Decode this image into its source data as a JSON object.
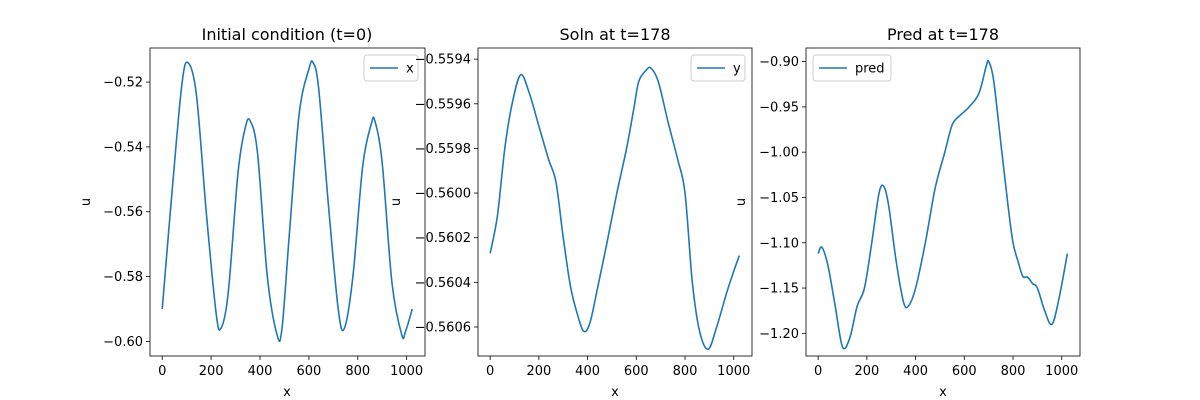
{
  "chart_data": [
    {
      "type": "line",
      "title": "Initial condition (t=0)",
      "xlabel": "x",
      "ylabel": "u",
      "xlim": [
        -50,
        1075
      ],
      "ylim": [
        -0.6045,
        -0.5095
      ],
      "xticks": [
        0,
        200,
        400,
        600,
        800,
        1000
      ],
      "xtick_labels": [
        "0",
        "200",
        "400",
        "600",
        "800",
        "1000"
      ],
      "yticks": [
        -0.6,
        -0.58,
        -0.56,
        -0.54,
        -0.52
      ],
      "ytick_labels": [
        "−0.60",
        "−0.58",
        "−0.56",
        "−0.54",
        "−0.52"
      ],
      "legend": "top-right",
      "color": "#1f77b4",
      "series": [
        {
          "name": "x",
          "x": [
            0,
            40,
            80,
            105,
            140,
            180,
            220,
            240,
            270,
            310,
            340,
            360,
            390,
            430,
            470,
            490,
            520,
            560,
            600,
            617,
            640,
            680,
            720,
            745,
            780,
            820,
            855,
            870,
            900,
            940,
            980,
            995,
            1023
          ],
          "y": [
            -0.59,
            -0.554,
            -0.521,
            -0.514,
            -0.524,
            -0.56,
            -0.591,
            -0.596,
            -0.585,
            -0.548,
            -0.534,
            -0.532,
            -0.542,
            -0.58,
            -0.598,
            -0.596,
            -0.567,
            -0.53,
            -0.516,
            -0.514,
            -0.522,
            -0.558,
            -0.59,
            -0.596,
            -0.58,
            -0.546,
            -0.533,
            -0.532,
            -0.545,
            -0.582,
            -0.598,
            -0.597,
            -0.59
          ]
        }
      ]
    },
    {
      "type": "line",
      "title": "Soln at t=178",
      "xlabel": "x",
      "ylabel": "u",
      "xlim": [
        -50,
        1075
      ],
      "ylim": [
        -0.56073,
        -0.55935
      ],
      "xticks": [
        0,
        200,
        400,
        600,
        800,
        1000
      ],
      "xtick_labels": [
        "0",
        "200",
        "400",
        "600",
        "800",
        "1000"
      ],
      "yticks": [
        -0.5606,
        -0.5604,
        -0.5602,
        -0.56,
        -0.5598,
        -0.5596,
        -0.5594
      ],
      "ytick_labels": [
        "−0.5606",
        "−0.5604",
        "−0.5602",
        "−0.5600",
        "−0.5598",
        "−0.5596",
        "−0.5594"
      ],
      "legend": "top-right",
      "color": "#1f77b4",
      "series": [
        {
          "name": "y",
          "x": [
            0,
            30,
            60,
            90,
            125,
            160,
            200,
            240,
            270,
            300,
            330,
            360,
            385,
            410,
            440,
            480,
            520,
            560,
            590,
            610,
            640,
            660,
            690,
            730,
            770,
            800,
            830,
            860,
            895,
            930,
            970,
            1000,
            1023
          ],
          "y": [
            -0.56027,
            -0.5601,
            -0.5598,
            -0.5596,
            -0.55947,
            -0.55955,
            -0.5597,
            -0.55985,
            -0.55995,
            -0.5602,
            -0.56042,
            -0.56055,
            -0.56062,
            -0.56058,
            -0.56043,
            -0.56022,
            -0.56,
            -0.5598,
            -0.55962,
            -0.5595,
            -0.55945,
            -0.55944,
            -0.5595,
            -0.55968,
            -0.55985,
            -0.56,
            -0.5604,
            -0.56062,
            -0.5607,
            -0.5606,
            -0.56045,
            -0.56035,
            -0.56028
          ]
        }
      ]
    },
    {
      "type": "line",
      "title": "Pred at t=178",
      "xlabel": "x",
      "ylabel": "u",
      "xlim": [
        -50,
        1075
      ],
      "ylim": [
        -1.225,
        -0.885
      ],
      "xticks": [
        0,
        200,
        400,
        600,
        800,
        1000
      ],
      "xtick_labels": [
        "0",
        "200",
        "400",
        "600",
        "800",
        "1000"
      ],
      "yticks": [
        -1.2,
        -1.15,
        -1.1,
        -1.05,
        -1.0,
        -0.95,
        -0.9
      ],
      "ytick_labels": [
        "−1.20",
        "−1.15",
        "−1.10",
        "−1.05",
        "−1.00",
        "−0.95",
        "−0.90"
      ],
      "legend": "top-left",
      "color": "#1f77b4",
      "series": [
        {
          "name": "pred",
          "x": [
            0,
            15,
            40,
            70,
            100,
            130,
            160,
            190,
            220,
            250,
            270,
            290,
            320,
            350,
            370,
            400,
            440,
            480,
            520,
            550,
            580,
            620,
            660,
            690,
            700,
            720,
            750,
            780,
            800,
            820,
            840,
            860,
            880,
            900,
            930,
            960,
            990,
            1023
          ],
          "y": [
            -1.112,
            -1.105,
            -1.125,
            -1.17,
            -1.215,
            -1.205,
            -1.17,
            -1.15,
            -1.1,
            -1.045,
            -1.038,
            -1.06,
            -1.12,
            -1.165,
            -1.17,
            -1.15,
            -1.1,
            -1.04,
            -1.0,
            -0.97,
            -0.96,
            -0.95,
            -0.935,
            -0.905,
            -0.9,
            -0.92,
            -0.99,
            -1.06,
            -1.1,
            -1.12,
            -1.137,
            -1.138,
            -1.145,
            -1.15,
            -1.175,
            -1.19,
            -1.16,
            -1.112
          ]
        }
      ]
    }
  ]
}
